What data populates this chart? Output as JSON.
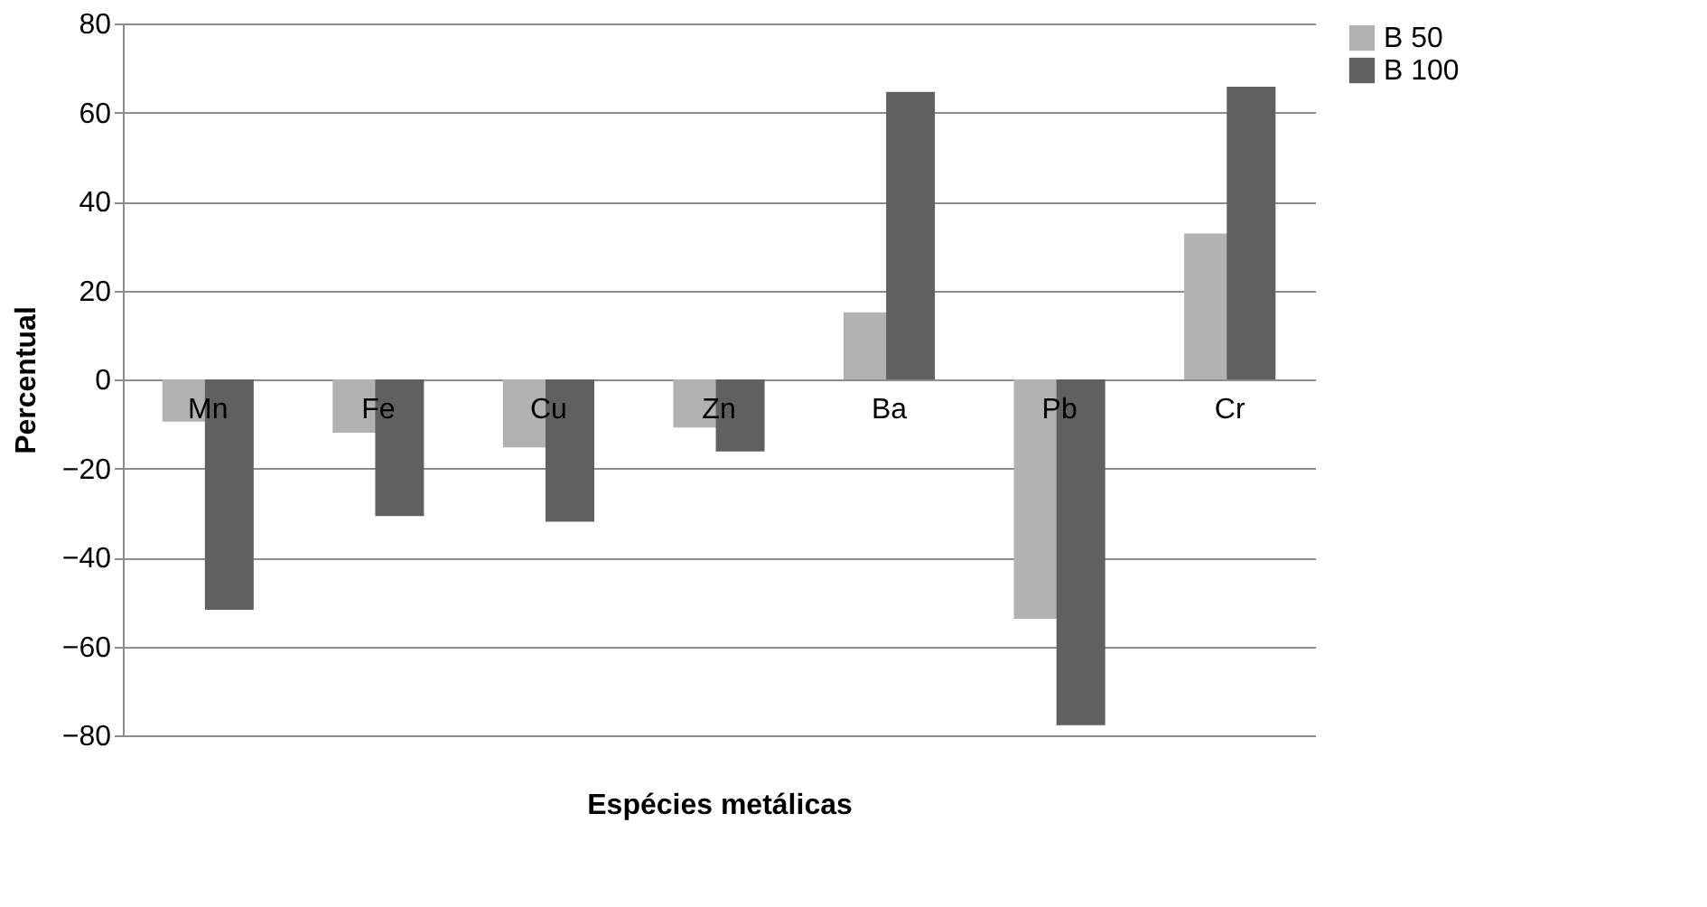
{
  "chart_data": {
    "type": "bar",
    "xlabel": "Espécies metálicas",
    "ylabel": "Percentual",
    "categories": [
      "Mn",
      "Fe",
      "Cu",
      "Zn",
      "Ba",
      "Pb",
      "Cr"
    ],
    "series": [
      {
        "name": "B 50",
        "color": "#b2b2b2",
        "values": [
          -9.5,
          -12,
          -15.3,
          -10.8,
          15.1,
          -53.8,
          32.8
        ]
      },
      {
        "name": "B 100",
        "color": "#606060",
        "values": [
          -51.8,
          -30.7,
          -32,
          -16.2,
          64.6,
          -77.7,
          65.8
        ]
      }
    ],
    "ylim": [
      -80,
      80
    ],
    "yticks": [
      -80,
      -60,
      -40,
      -20,
      0,
      20,
      40,
      60,
      80
    ],
    "grid": "y",
    "legend": "right"
  }
}
